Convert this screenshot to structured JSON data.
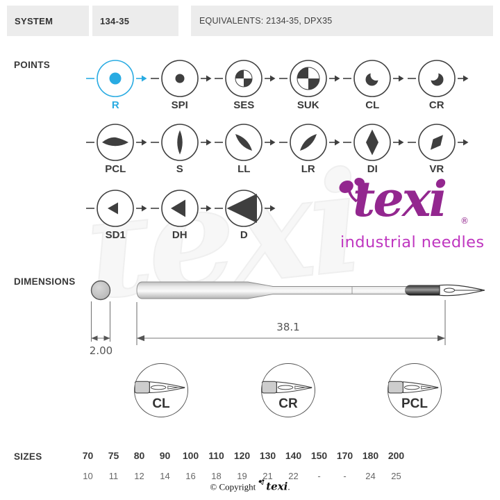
{
  "header": {
    "system_label": "SYSTEM",
    "system_value": "134-35",
    "equivalents": "EQUIVALENTS: 2134-35, DPX35"
  },
  "colors": {
    "accent_blue": "#29abe2",
    "icon_dark": "#3f3f3f",
    "brand_purple": "#93278f",
    "brand_magenta": "#bf36c0"
  },
  "points": {
    "label": "POINTS",
    "rows": [
      [
        {
          "label": "R",
          "icon": "dot",
          "accent": true
        },
        {
          "label": "SPI",
          "icon": "dot",
          "accent": false
        },
        {
          "label": "SES",
          "icon": "quarters_s",
          "accent": false
        },
        {
          "label": "SUK",
          "icon": "quarters_l",
          "accent": false
        },
        {
          "label": "CL",
          "icon": "crescent_l",
          "accent": false
        },
        {
          "label": "CR",
          "icon": "crescent_r",
          "accent": false
        }
      ],
      [
        {
          "label": "PCL",
          "icon": "lens_h",
          "accent": false
        },
        {
          "label": "S",
          "icon": "lens_v",
          "accent": false
        },
        {
          "label": "LL",
          "icon": "lens_ll",
          "accent": false
        },
        {
          "label": "LR",
          "icon": "lens_lr",
          "accent": false
        },
        {
          "label": "DI",
          "icon": "diamond",
          "accent": false
        },
        {
          "label": "VR",
          "icon": "diamond_tilt",
          "accent": false
        }
      ],
      [
        {
          "label": "SD1",
          "icon": "tri_s",
          "accent": false
        },
        {
          "label": "DH",
          "icon": "tri_m",
          "accent": false
        },
        {
          "label": "D",
          "icon": "tri_l",
          "accent": false
        }
      ]
    ]
  },
  "logo": {
    "brand": "texi",
    "registered": "®",
    "subtitle": "industrial needles"
  },
  "watermark": "texi",
  "dimensions": {
    "label": "DIMENSIONS",
    "diameter": "2.00",
    "length": "38.1",
    "details": [
      {
        "label": "CL"
      },
      {
        "label": "CR"
      },
      {
        "label": "PCL"
      }
    ]
  },
  "sizes": {
    "label": "SIZES",
    "columns": [
      {
        "nm": "70",
        "size": "10"
      },
      {
        "nm": "75",
        "size": "11"
      },
      {
        "nm": "80",
        "size": "12"
      },
      {
        "nm": "90",
        "size": "14"
      },
      {
        "nm": "100",
        "size": "16"
      },
      {
        "nm": "110",
        "size": "18"
      },
      {
        "nm": "120",
        "size": "19"
      },
      {
        "nm": "130",
        "size": "21"
      },
      {
        "nm": "140",
        "size": "22"
      },
      {
        "nm": "150",
        "size": "-"
      },
      {
        "nm": "170",
        "size": "-"
      },
      {
        "nm": "180",
        "size": "24"
      },
      {
        "nm": "200",
        "size": "25"
      }
    ]
  },
  "footer": {
    "prefix": "© Copyright",
    "brand": "texi",
    "suffix": "."
  }
}
